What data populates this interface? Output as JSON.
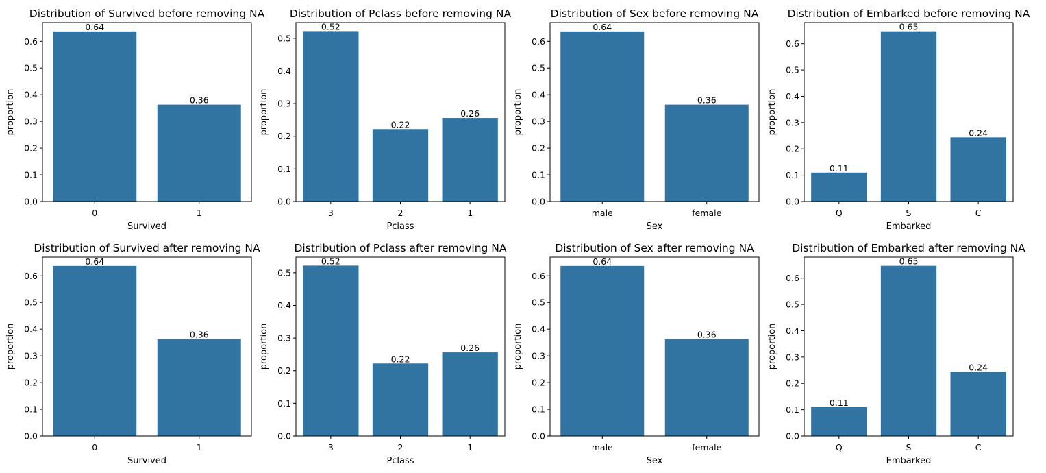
{
  "chart_data": [
    {
      "type": "bar",
      "title": "Distribution of Survived before removing NA",
      "xlabel": "Survived",
      "ylabel": "proportion",
      "categories": [
        "0",
        "1"
      ],
      "values": [
        0.637,
        0.363
      ],
      "value_labels": [
        "0.64",
        "0.36"
      ],
      "ylim": [
        0,
        0.67
      ],
      "yticks": [
        0.0,
        0.1,
        0.2,
        0.3,
        0.4,
        0.5,
        0.6
      ],
      "color": "#3274a1",
      "grid": false
    },
    {
      "type": "bar",
      "title": "Distribution of Pclass before removing NA",
      "xlabel": "Pclass",
      "ylabel": "proportion",
      "categories": [
        "3",
        "2",
        "1"
      ],
      "values": [
        0.522,
        0.222,
        0.256
      ],
      "value_labels": [
        "0.52",
        "0.22",
        "0.26"
      ],
      "ylim": [
        0,
        0.548
      ],
      "yticks": [
        0.0,
        0.1,
        0.2,
        0.3,
        0.4,
        0.5
      ],
      "color": "#3274a1",
      "grid": false
    },
    {
      "type": "bar",
      "title": "Distribution of Sex before removing NA",
      "xlabel": "Sex",
      "ylabel": "proportion",
      "categories": [
        "male",
        "female"
      ],
      "values": [
        0.637,
        0.363
      ],
      "value_labels": [
        "0.64",
        "0.36"
      ],
      "ylim": [
        0,
        0.67
      ],
      "yticks": [
        0.0,
        0.1,
        0.2,
        0.3,
        0.4,
        0.5,
        0.6
      ],
      "color": "#3274a1",
      "grid": false
    },
    {
      "type": "bar",
      "title": "Distribution of Embarked before removing NA",
      "xlabel": "Embarked",
      "ylabel": "proportion",
      "categories": [
        "Q",
        "S",
        "C"
      ],
      "values": [
        0.11,
        0.647,
        0.244
      ],
      "value_labels": [
        "0.11",
        "0.65",
        "0.24"
      ],
      "ylim": [
        0,
        0.68
      ],
      "yticks": [
        0.0,
        0.1,
        0.2,
        0.3,
        0.4,
        0.5,
        0.6
      ],
      "color": "#3274a1",
      "grid": false
    },
    {
      "type": "bar",
      "title": "Distribution of Survived after removing NA",
      "xlabel": "Survived",
      "ylabel": "proportion",
      "categories": [
        "0",
        "1"
      ],
      "values": [
        0.637,
        0.363
      ],
      "value_labels": [
        "0.64",
        "0.36"
      ],
      "ylim": [
        0,
        0.67
      ],
      "yticks": [
        0.0,
        0.1,
        0.2,
        0.3,
        0.4,
        0.5,
        0.6
      ],
      "color": "#3274a1",
      "grid": false
    },
    {
      "type": "bar",
      "title": "Distribution of Pclass after removing NA",
      "xlabel": "Pclass",
      "ylabel": "proportion",
      "categories": [
        "3",
        "2",
        "1"
      ],
      "values": [
        0.522,
        0.222,
        0.256
      ],
      "value_labels": [
        "0.52",
        "0.22",
        "0.26"
      ],
      "ylim": [
        0,
        0.548
      ],
      "yticks": [
        0.0,
        0.1,
        0.2,
        0.3,
        0.4,
        0.5
      ],
      "color": "#3274a1",
      "grid": false
    },
    {
      "type": "bar",
      "title": "Distribution of Sex after removing NA",
      "xlabel": "Sex",
      "ylabel": "proportion",
      "categories": [
        "male",
        "female"
      ],
      "values": [
        0.637,
        0.363
      ],
      "value_labels": [
        "0.64",
        "0.36"
      ],
      "ylim": [
        0,
        0.67
      ],
      "yticks": [
        0.0,
        0.1,
        0.2,
        0.3,
        0.4,
        0.5,
        0.6
      ],
      "color": "#3274a1",
      "grid": false
    },
    {
      "type": "bar",
      "title": "Distribution of Embarked after removing NA",
      "xlabel": "Embarked",
      "ylabel": "proportion",
      "categories": [
        "Q",
        "S",
        "C"
      ],
      "values": [
        0.11,
        0.647,
        0.244
      ],
      "value_labels": [
        "0.11",
        "0.65",
        "0.24"
      ],
      "ylim": [
        0,
        0.68
      ],
      "yticks": [
        0.0,
        0.1,
        0.2,
        0.3,
        0.4,
        0.5,
        0.6
      ],
      "color": "#3274a1",
      "grid": false
    }
  ]
}
